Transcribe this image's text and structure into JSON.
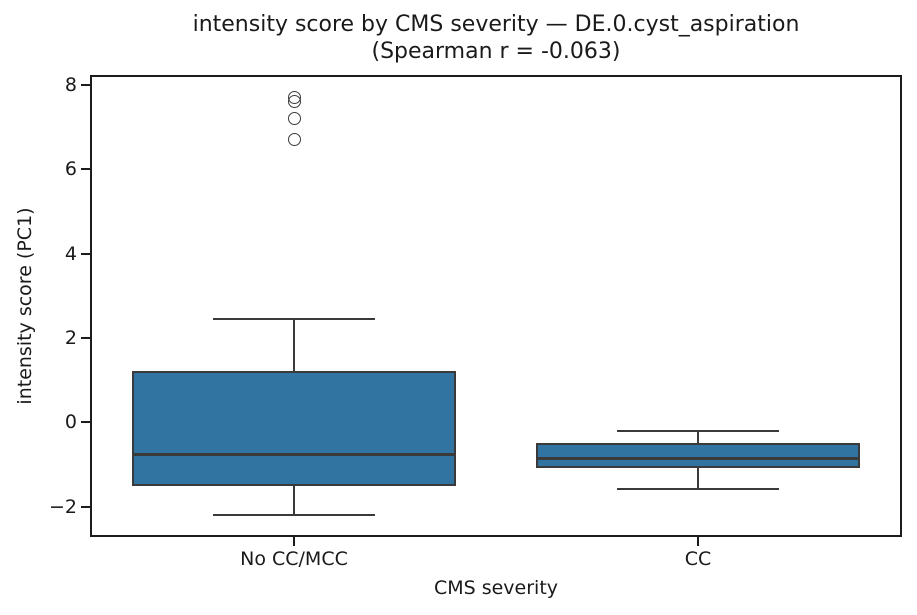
{
  "chart_data": {
    "type": "box",
    "title": "intensity score by CMS severity — DE.0.cyst_aspiration",
    "subtitle": "(Spearman r = -0.063)",
    "xlabel": "CMS severity",
    "ylabel": "intensity score (PC1)",
    "categories": [
      "No CC/MCC",
      "CC"
    ],
    "x_positions": [
      0.25,
      0.75
    ],
    "ylim": [
      -2.67,
      8.19
    ],
    "grid": false,
    "legend": null,
    "y_ticks": [
      {
        "value": 8,
        "label": "8"
      },
      {
        "value": 6,
        "label": "6"
      },
      {
        "value": 4,
        "label": "4"
      },
      {
        "value": 2,
        "label": "2"
      },
      {
        "value": 0,
        "label": "0"
      },
      {
        "value": -2,
        "label": "−2"
      }
    ],
    "boxes": [
      {
        "category": "No CC/MCC",
        "whisker_low": -2.2,
        "q1": -1.51,
        "median": -0.75,
        "q3": 1.22,
        "whisker_high": 2.45,
        "outliers": [
          7.7,
          7.6,
          7.2,
          6.7
        ]
      },
      {
        "category": "CC",
        "whisker_low": -1.58,
        "q1": -1.09,
        "median": -0.85,
        "q3": -0.48,
        "whisker_high": -0.2,
        "outliers": []
      }
    ],
    "colors": {
      "box_fill": "#3274a1",
      "box_edge": "#3a3a3a",
      "spine": "#1c1c1c",
      "text": "#1a1a1a"
    },
    "box_width_frac": 0.4,
    "cap_width_frac": 0.2
  }
}
